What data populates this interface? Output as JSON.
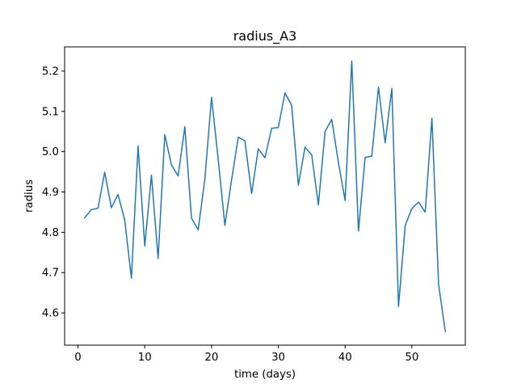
{
  "chart_data": {
    "type": "line",
    "title": "radius_A3",
    "xlabel": "time (days)",
    "ylabel": "radius",
    "xlim": [
      -2,
      58
    ],
    "ylim": [
      4.52,
      5.26
    ],
    "xticks": [
      0,
      10,
      20,
      30,
      40,
      50
    ],
    "yticks": [
      4.6,
      4.7,
      4.8,
      4.9,
      5.0,
      5.1,
      5.2
    ],
    "ytick_labels": [
      "4.6",
      "4.7",
      "4.8",
      "4.9",
      "5.0",
      "5.1",
      "5.2"
    ],
    "grid": false,
    "series": [
      {
        "color": "#1f77b4",
        "x": [
          1,
          2,
          3,
          4,
          5,
          6,
          7,
          8,
          9,
          10,
          11,
          12,
          13,
          14,
          15,
          16,
          17,
          18,
          19,
          20,
          21,
          22,
          23,
          24,
          25,
          26,
          27,
          28,
          29,
          30,
          31,
          32,
          33,
          34,
          35,
          36,
          37,
          38,
          39,
          40,
          41,
          42,
          43,
          44,
          45,
          46,
          47,
          48,
          49,
          50,
          51,
          52,
          53,
          54,
          55
        ],
        "y": [
          4.836,
          4.856,
          4.86,
          4.949,
          4.861,
          4.894,
          4.83,
          4.686,
          5.014,
          4.766,
          4.942,
          4.735,
          5.042,
          4.967,
          4.94,
          5.062,
          4.835,
          4.806,
          4.932,
          5.135,
          4.981,
          4.817,
          4.93,
          5.036,
          5.027,
          4.896,
          5.007,
          4.985,
          5.058,
          5.06,
          5.146,
          5.115,
          4.917,
          5.011,
          4.992,
          4.868,
          5.05,
          5.08,
          4.973,
          4.879,
          5.225,
          4.803,
          4.986,
          4.989,
          5.16,
          5.022,
          5.157,
          4.616,
          4.817,
          4.859,
          4.875,
          4.85,
          5.083,
          4.671,
          4.554
        ]
      }
    ]
  }
}
